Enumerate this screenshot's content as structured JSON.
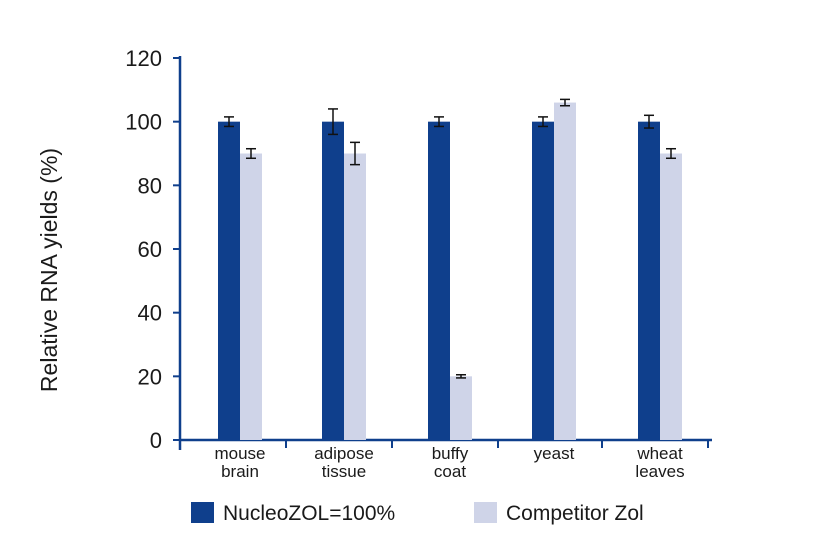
{
  "chart_data": {
    "type": "bar",
    "title": "",
    "xlabel": "",
    "ylabel": "Relative RNA yields (%)",
    "ylim": [
      0,
      120
    ],
    "yticks": [
      0,
      20,
      40,
      60,
      80,
      100,
      120
    ],
    "categories": [
      [
        "mouse",
        "brain"
      ],
      [
        "adipose",
        "tissue"
      ],
      [
        "buffy",
        "coat"
      ],
      [
        "yeast"
      ],
      [
        "wheat",
        "leaves"
      ]
    ],
    "series": [
      {
        "name": "NucleoZOL=100%",
        "color": "#0f3f8c",
        "values": [
          100,
          100,
          100,
          100,
          100
        ],
        "errors": [
          1.5,
          4,
          1.5,
          1.5,
          2
        ]
      },
      {
        "name": "Competitor Zol",
        "color": "#cfd4e8",
        "values": [
          90,
          90,
          20,
          106,
          90
        ],
        "errors": [
          1.5,
          3.5,
          0.5,
          1,
          1.5
        ]
      }
    ],
    "legend_position": "bottom",
    "axis_color": "#0f3f8c"
  }
}
